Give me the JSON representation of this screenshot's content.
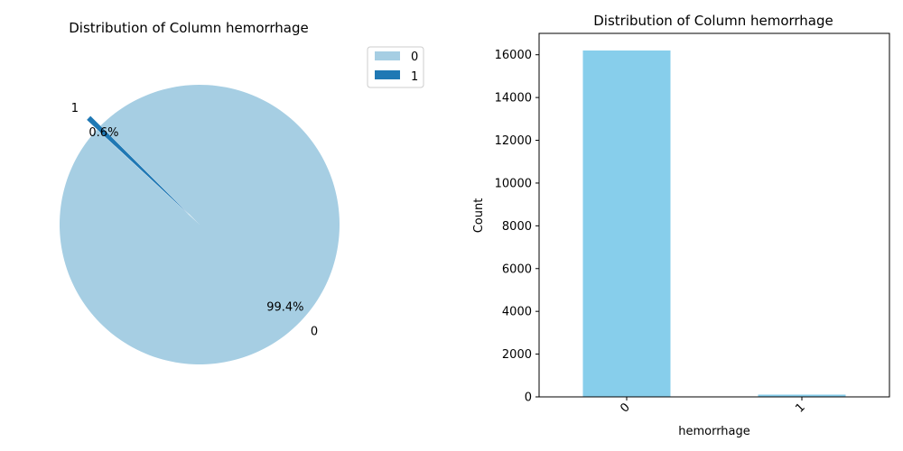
{
  "chart_data": [
    {
      "type": "pie",
      "title": "Distribution of Column hemorrhage",
      "labels": [
        "0",
        "1"
      ],
      "values": [
        99.4,
        0.6
      ],
      "pct_labels": [
        "99.4%",
        "0.6%"
      ],
      "colors": [
        "#a6cee3",
        "#1f78b4"
      ],
      "explode": [
        0,
        0.1
      ],
      "legend": {
        "placement": "upper-right",
        "entries": [
          "0",
          "1"
        ]
      }
    },
    {
      "type": "bar",
      "title": "Distribution of Column hemorrhage",
      "xlabel": "hemorrhage",
      "ylabel": "Count",
      "categories": [
        "0",
        "1"
      ],
      "values": [
        16200,
        105
      ],
      "ylim": [
        0,
        17000
      ],
      "yticks": [
        0,
        2000,
        4000,
        6000,
        8000,
        10000,
        12000,
        14000,
        16000
      ],
      "bar_color": "#87ceeb",
      "grid": false
    }
  ]
}
